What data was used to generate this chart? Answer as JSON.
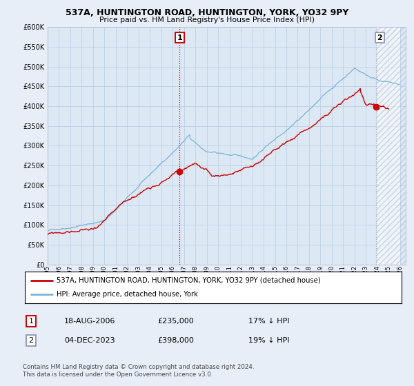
{
  "title1": "537A, HUNTINGTON ROAD, HUNTINGTON, YORK, YO32 9PY",
  "title2": "Price paid vs. HM Land Registry's House Price Index (HPI)",
  "ytick_values": [
    0,
    50000,
    100000,
    150000,
    200000,
    250000,
    300000,
    350000,
    400000,
    450000,
    500000,
    550000,
    600000
  ],
  "xlim_left": 1995.0,
  "xlim_right": 2026.5,
  "ylim": [
    0,
    600000
  ],
  "xtick_years": [
    1995,
    1996,
    1997,
    1998,
    1999,
    2000,
    2001,
    2002,
    2003,
    2004,
    2005,
    2006,
    2007,
    2008,
    2009,
    2010,
    2011,
    2012,
    2013,
    2014,
    2015,
    2016,
    2017,
    2018,
    2019,
    2020,
    2021,
    2022,
    2023,
    2024,
    2025,
    2026
  ],
  "hpi_color": "#7ab4d8",
  "price_color": "#cc0000",
  "vline1_color": "#cc0000",
  "vline2_color": "#b0b0cc",
  "vline_style": ":",
  "point1_x": 2006.62,
  "point1_y": 235000,
  "point2_x": 2023.92,
  "point2_y": 398000,
  "legend_line1": "537A, HUNTINGTON ROAD, HUNTINGTON, YORK, YO32 9PY (detached house)",
  "legend_line2": "HPI: Average price, detached house, York",
  "table_row1": [
    "1",
    "18-AUG-2006",
    "£235,000",
    "17% ↓ HPI"
  ],
  "table_row2": [
    "2",
    "04-DEC-2023",
    "£398,000",
    "19% ↓ HPI"
  ],
  "copyright": "Contains HM Land Registry data © Crown copyright and database right 2024.\nThis data is licensed under the Open Government Licence v3.0.",
  "bg_color": "#e8eef8",
  "plot_bg_color": "#dde8f5",
  "grid_color": "#b8cce0",
  "hatch_area_start": 2023.92,
  "box1_color": "#cc0000",
  "box2_color": "#9999bb"
}
